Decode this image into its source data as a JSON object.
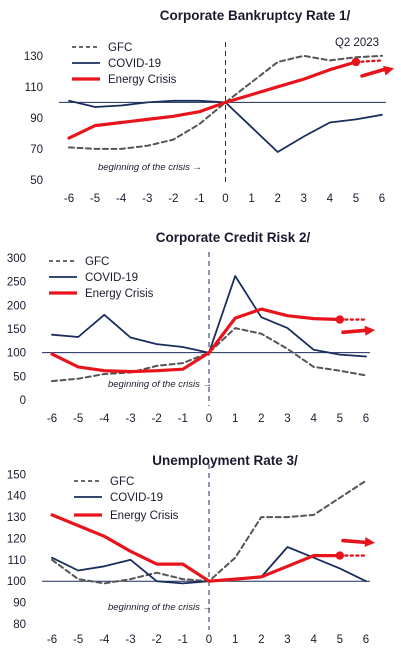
{
  "colors": {
    "gfc": "#555555",
    "covid": "#1a2e5c",
    "energy": "#e8141c",
    "axis": "#1a2e5c",
    "text": "#1a1a2e"
  },
  "icons": {
    "arrow": "red-trend-arrow-icon",
    "marker": "red-dot-marker-icon"
  },
  "chart_data": [
    {
      "type": "line",
      "title": "Corporate Bankruptcy Rate 1/",
      "annotation": "Q2 2023",
      "note": "beginning of the crisis →",
      "x": [
        -6,
        -5,
        -4,
        -3,
        -2,
        -1,
        0,
        1,
        2,
        3,
        4,
        5,
        6
      ],
      "xticks": [
        "-6",
        "-5",
        "-4",
        "-3",
        "-2",
        "-1",
        "0",
        "1",
        "2",
        "3",
        "4",
        "5",
        "6"
      ],
      "yticks": [
        50,
        70,
        90,
        110,
        130
      ],
      "ylim": [
        50,
        135
      ],
      "baseline": 100,
      "crisis_x": 0,
      "series": [
        {
          "name": "GFC",
          "values": [
            71,
            70,
            70,
            72,
            76,
            86,
            100,
            113,
            126,
            130,
            127,
            129,
            130
          ]
        },
        {
          "name": "COVID-19",
          "values": [
            101,
            97,
            98,
            100,
            101,
            101,
            100,
            84,
            68,
            78,
            87,
            89,
            92
          ]
        },
        {
          "name": "Energy Crisis",
          "values": [
            77,
            85,
            87,
            89,
            91,
            94,
            100,
            105,
            110,
            115,
            121,
            126,
            null
          ]
        }
      ],
      "energy_dot_x": 5,
      "energy_dotted_to": 6,
      "energy_dotted_value": 127,
      "energy_arrow": [
        117,
        122
      ]
    },
    {
      "type": "line",
      "title": "Corporate Credit Risk 2/",
      "note": "beginning of the crisis →",
      "x": [
        -6,
        -5,
        -4,
        -3,
        -2,
        -1,
        0,
        1,
        2,
        3,
        4,
        5,
        6
      ],
      "xticks": [
        "-6",
        "-5",
        "-4",
        "-3",
        "-2",
        "-1",
        "0",
        "1",
        "2",
        "3",
        "4",
        "5",
        "6"
      ],
      "yticks": [
        0,
        50,
        100,
        150,
        200,
        250,
        300
      ],
      "ylim": [
        0,
        300
      ],
      "baseline": 100,
      "crisis_x": 0,
      "series": [
        {
          "name": "GFC",
          "values": [
            40,
            45,
            55,
            58,
            72,
            78,
            100,
            152,
            140,
            108,
            70,
            62,
            52
          ]
        },
        {
          "name": "COVID-19",
          "values": [
            138,
            133,
            180,
            132,
            118,
            112,
            100,
            262,
            175,
            152,
            106,
            96,
            92
          ]
        },
        {
          "name": "Energy Crisis",
          "values": [
            97,
            70,
            62,
            60,
            62,
            65,
            100,
            173,
            192,
            178,
            172,
            170,
            null
          ]
        }
      ],
      "energy_dot_x": 5,
      "energy_dotted_to": 6,
      "energy_dotted_value": 170,
      "energy_arrow": [
        143,
        148
      ]
    },
    {
      "type": "line",
      "title": "Unemployment Rate 3/",
      "note": "beginning of the crisis →",
      "x": [
        -6,
        -5,
        -4,
        -3,
        -2,
        -1,
        0,
        1,
        2,
        3,
        4,
        5,
        6
      ],
      "xticks": [
        "-6",
        "-5",
        "-4",
        "-3",
        "-2",
        "-1",
        "0",
        "1",
        "2",
        "3",
        "4",
        "5",
        "6"
      ],
      "yticks": [
        80,
        90,
        100,
        110,
        120,
        130,
        140,
        150
      ],
      "ylim": [
        80,
        152
      ],
      "baseline": 100,
      "crisis_x": 0,
      "series": [
        {
          "name": "GFC",
          "values": [
            110,
            101,
            99,
            101,
            104,
            101,
            100,
            111,
            130,
            130,
            131,
            139,
            147
          ]
        },
        {
          "name": "COVID-19",
          "values": [
            111,
            105,
            107,
            110,
            100,
            99,
            100,
            101,
            102,
            116,
            111,
            106,
            100
          ]
        },
        {
          "name": "Energy Crisis",
          "values": [
            131,
            126,
            121,
            114,
            108,
            108,
            100,
            101,
            102,
            107,
            112,
            112,
            null
          ]
        }
      ],
      "energy_dot_x": 5,
      "energy_dotted_to": 6,
      "energy_dotted_value": 112,
      "energy_arrow": [
        119,
        118
      ]
    }
  ]
}
